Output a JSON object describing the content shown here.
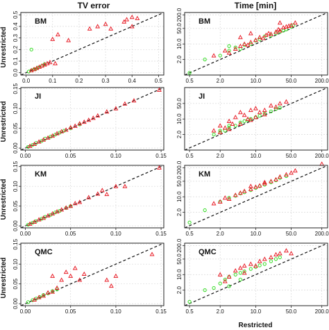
{
  "figure": {
    "col_titles": [
      "TV error",
      "Time [min]"
    ],
    "xlabel": "Restricted",
    "ylabel": "Unrestricted"
  },
  "colors": {
    "triangle": "#e8202a",
    "circle": "#33dd22",
    "diagonal": "#111111",
    "grid": "#d9d9d9"
  },
  "chart_data": [
    {
      "type": "scatter",
      "label": "BM",
      "column": "TV error",
      "scale": "linear",
      "xlim": [
        -0.02,
        0.52
      ],
      "ylim": [
        -0.02,
        0.52
      ],
      "xticks": [
        "0.0",
        "0.1",
        "0.2",
        "0.3",
        "0.4",
        "0.5"
      ],
      "xtick_vals": [
        0,
        0.1,
        0.2,
        0.3,
        0.4,
        0.5
      ],
      "yticks": [
        "0.0",
        "0.1",
        "0.2",
        "0.3",
        "0.4",
        "0.5"
      ],
      "ytick_vals": [
        0,
        0.1,
        0.2,
        0.3,
        0.4,
        0.5
      ],
      "grid": true,
      "diagonal": true,
      "triangles": [
        [
          0.1,
          0.29
        ],
        [
          0.12,
          0.33
        ],
        [
          0.16,
          0.28
        ],
        [
          0.24,
          0.38
        ],
        [
          0.27,
          0.4
        ],
        [
          0.3,
          0.42
        ],
        [
          0.32,
          0.38
        ],
        [
          0.37,
          0.44
        ],
        [
          0.38,
          0.46
        ],
        [
          0.4,
          0.4
        ],
        [
          0.4,
          0.48
        ],
        [
          0.42,
          0.47
        ],
        [
          0.02,
          0.02
        ],
        [
          0.03,
          0.03
        ],
        [
          0.04,
          0.04
        ],
        [
          0.05,
          0.05
        ],
        [
          0.06,
          0.06
        ],
        [
          0.07,
          0.07
        ],
        [
          0.08,
          0.08
        ],
        [
          0.09,
          0.09
        ],
        [
          0.11,
          0.08
        ]
      ],
      "circles": [
        [
          0.01,
          0.01
        ],
        [
          0.02,
          0.02
        ],
        [
          0.03,
          0.03
        ],
        [
          0.035,
          0.03
        ],
        [
          0.045,
          0.045
        ],
        [
          0.06,
          0.06
        ],
        [
          0.07,
          0.075
        ],
        [
          0.02,
          0.2
        ]
      ]
    },
    {
      "type": "scatter",
      "label": "BM",
      "column": "Time [min]",
      "scale": "log",
      "xlim": [
        0.4,
        260
      ],
      "ylim": [
        0.4,
        260
      ],
      "xticks": [
        "0.5",
        "2.0",
        "10.0",
        "50.0",
        "200.0"
      ],
      "xtick_vals": [
        0.5,
        2,
        10,
        50,
        200
      ],
      "yticks": [
        "2.0",
        "10.0",
        "50.0",
        "200.0"
      ],
      "ytick_vals": [
        2,
        10,
        50,
        200
      ],
      "grid": true,
      "diagonal": true,
      "triangles": [
        [
          1.5,
          3
        ],
        [
          2.5,
          5
        ],
        [
          3,
          4
        ],
        [
          4,
          6
        ],
        [
          5,
          8
        ],
        [
          6,
          10
        ],
        [
          7,
          9
        ],
        [
          8,
          12
        ],
        [
          10,
          15
        ],
        [
          12,
          20
        ],
        [
          14,
          18
        ],
        [
          16,
          25
        ],
        [
          18,
          30
        ],
        [
          20,
          28
        ],
        [
          25,
          35
        ],
        [
          28,
          45
        ],
        [
          30,
          40
        ],
        [
          35,
          55
        ],
        [
          40,
          60
        ],
        [
          45,
          65
        ],
        [
          50,
          70
        ],
        [
          60,
          90
        ],
        [
          8,
          30
        ],
        [
          5,
          20
        ],
        [
          30,
          90
        ]
      ],
      "circles": [
        [
          0.5,
          0.5
        ],
        [
          1,
          2
        ],
        [
          2,
          3
        ],
        [
          3,
          5
        ],
        [
          4,
          7
        ],
        [
          5,
          6
        ],
        [
          6,
          9
        ],
        [
          8,
          10
        ],
        [
          10,
          14
        ],
        [
          12,
          16
        ],
        [
          15,
          22
        ],
        [
          20,
          24
        ],
        [
          25,
          30
        ],
        [
          30,
          35
        ],
        [
          35,
          40
        ],
        [
          40,
          45
        ],
        [
          50,
          60
        ],
        [
          55,
          70
        ],
        [
          3,
          8
        ]
      ]
    },
    {
      "type": "scatter",
      "label": "JI",
      "column": "TV error",
      "scale": "linear",
      "xlim": [
        -0.005,
        0.153
      ],
      "ylim": [
        -0.005,
        0.153
      ],
      "xticks": [
        "0.00",
        "0.05",
        "0.10",
        "0.15"
      ],
      "xtick_vals": [
        0,
        0.05,
        0.1,
        0.15
      ],
      "yticks": [
        "0.00",
        "0.05",
        "0.10",
        "0.15"
      ],
      "ytick_vals": [
        0,
        0.05,
        0.1,
        0.15
      ],
      "grid": true,
      "diagonal": true,
      "triangles": [
        [
          0.005,
          0.005
        ],
        [
          0.01,
          0.01
        ],
        [
          0.015,
          0.016
        ],
        [
          0.02,
          0.021
        ],
        [
          0.025,
          0.026
        ],
        [
          0.03,
          0.031
        ],
        [
          0.035,
          0.037
        ],
        [
          0.04,
          0.042
        ],
        [
          0.045,
          0.046
        ],
        [
          0.05,
          0.052
        ],
        [
          0.055,
          0.056
        ],
        [
          0.06,
          0.062
        ],
        [
          0.065,
          0.066
        ],
        [
          0.07,
          0.071
        ],
        [
          0.075,
          0.076
        ],
        [
          0.08,
          0.082
        ],
        [
          0.09,
          0.092
        ],
        [
          0.1,
          0.1
        ],
        [
          0.11,
          0.112
        ],
        [
          0.12,
          0.12
        ],
        [
          0.148,
          0.147
        ]
      ],
      "circles": [
        [
          0.003,
          0.003
        ],
        [
          0.008,
          0.008
        ],
        [
          0.012,
          0.013
        ],
        [
          0.018,
          0.018
        ],
        [
          0.022,
          0.024
        ],
        [
          0.028,
          0.029
        ],
        [
          0.033,
          0.034
        ],
        [
          0.038,
          0.039
        ],
        [
          0.043,
          0.044
        ],
        [
          0.05,
          0.05
        ],
        [
          0.06,
          0.06
        ]
      ]
    },
    {
      "type": "scatter",
      "label": "JI",
      "column": "Time [min]",
      "scale": "log",
      "xlim": [
        0.4,
        260
      ],
      "ylim": [
        0.4,
        260
      ],
      "xticks": [
        "0.5",
        "2.0",
        "10.0",
        "50.0",
        "200.0"
      ],
      "xtick_vals": [
        0.5,
        2,
        10,
        50,
        200
      ],
      "yticks": [
        "2.0",
        "10.0",
        "50.0"
      ],
      "ytick_vals": [
        2,
        10,
        50
      ],
      "grid": true,
      "diagonal": true,
      "triangles": [
        [
          1.5,
          3
        ],
        [
          2,
          5
        ],
        [
          2.5,
          4
        ],
        [
          3,
          8
        ],
        [
          3.5,
          6
        ],
        [
          4,
          12
        ],
        [
          5,
          20
        ],
        [
          6,
          15
        ],
        [
          7,
          10
        ],
        [
          8,
          25
        ],
        [
          10,
          30
        ],
        [
          12,
          20
        ],
        [
          15,
          25
        ],
        [
          20,
          40
        ],
        [
          25,
          35
        ],
        [
          30,
          50
        ],
        [
          40,
          60
        ],
        [
          2,
          2.5
        ],
        [
          3,
          3.5
        ],
        [
          5,
          6
        ],
        [
          8,
          9
        ],
        [
          10,
          12
        ],
        [
          15,
          16
        ]
      ],
      "circles": [
        [
          1.5,
          2
        ],
        [
          2,
          2.5
        ],
        [
          2.5,
          3
        ],
        [
          3,
          4
        ],
        [
          4,
          5
        ],
        [
          5,
          7
        ],
        [
          6,
          8
        ],
        [
          8,
          10
        ],
        [
          10,
          12
        ],
        [
          12,
          14
        ],
        [
          15,
          18
        ],
        [
          20,
          22
        ],
        [
          25,
          28
        ],
        [
          30,
          32
        ],
        [
          2,
          3
        ],
        [
          3,
          5
        ],
        [
          7,
          9
        ]
      ]
    },
    {
      "type": "scatter",
      "label": "KM",
      "column": "TV error",
      "scale": "linear",
      "xlim": [
        -0.005,
        0.153
      ],
      "ylim": [
        -0.005,
        0.153
      ],
      "xticks": [
        "0.00",
        "0.05",
        "0.10",
        "0.15"
      ],
      "xtick_vals": [
        0,
        0.05,
        0.1,
        0.15
      ],
      "yticks": [
        "0.00",
        "0.05",
        "0.10",
        "0.15"
      ],
      "ytick_vals": [
        0,
        0.05,
        0.1,
        0.15
      ],
      "grid": true,
      "diagonal": true,
      "triangles": [
        [
          0.005,
          0.005
        ],
        [
          0.01,
          0.01
        ],
        [
          0.015,
          0.016
        ],
        [
          0.02,
          0.02
        ],
        [
          0.025,
          0.026
        ],
        [
          0.03,
          0.031
        ],
        [
          0.035,
          0.036
        ],
        [
          0.04,
          0.041
        ],
        [
          0.045,
          0.046
        ],
        [
          0.05,
          0.05
        ],
        [
          0.055,
          0.057
        ],
        [
          0.06,
          0.06
        ],
        [
          0.07,
          0.072
        ],
        [
          0.08,
          0.081
        ],
        [
          0.085,
          0.09
        ],
        [
          0.09,
          0.08
        ],
        [
          0.1,
          0.1
        ],
        [
          0.11,
          0.1
        ],
        [
          0.148,
          0.147
        ]
      ],
      "circles": [
        [
          0.003,
          0.003
        ],
        [
          0.008,
          0.008
        ],
        [
          0.012,
          0.012
        ],
        [
          0.018,
          0.018
        ],
        [
          0.022,
          0.023
        ],
        [
          0.028,
          0.028
        ],
        [
          0.033,
          0.034
        ],
        [
          0.038,
          0.038
        ],
        [
          0.045,
          0.045
        ],
        [
          0.05,
          0.05
        ]
      ]
    },
    {
      "type": "scatter",
      "label": "KM",
      "column": "Time [min]",
      "scale": "log",
      "xlim": [
        0.4,
        260
      ],
      "ylim": [
        0.4,
        260
      ],
      "xticks": [
        "0.5",
        "2.0",
        "10.0",
        "50.0",
        "200.0"
      ],
      "xtick_vals": [
        0.5,
        2,
        10,
        50,
        200
      ],
      "yticks": [
        "2.0",
        "10.0",
        "50.0",
        "200.0"
      ],
      "ytick_vals": [
        2,
        10,
        50,
        200
      ],
      "grid": true,
      "diagonal": true,
      "triangles": [
        [
          1.5,
          5
        ],
        [
          2,
          6
        ],
        [
          3,
          8
        ],
        [
          4,
          12
        ],
        [
          5,
          15
        ],
        [
          6,
          18
        ],
        [
          8,
          22
        ],
        [
          10,
          28
        ],
        [
          12,
          32
        ],
        [
          15,
          40
        ],
        [
          20,
          50
        ],
        [
          25,
          60
        ],
        [
          30,
          80
        ],
        [
          40,
          100
        ],
        [
          50,
          120
        ],
        [
          60,
          150
        ],
        [
          200,
          300
        ],
        [
          2.5,
          9
        ],
        [
          8,
          30
        ],
        [
          15,
          45
        ]
      ],
      "circles": [
        [
          0.5,
          0.7
        ],
        [
          1,
          2.5
        ],
        [
          2,
          6
        ],
        [
          3,
          9
        ],
        [
          4,
          11
        ],
        [
          5,
          14
        ],
        [
          6,
          16
        ],
        [
          8,
          20
        ],
        [
          10,
          25
        ],
        [
          12,
          30
        ],
        [
          15,
          35
        ],
        [
          20,
          45
        ],
        [
          25,
          55
        ],
        [
          30,
          70
        ],
        [
          40,
          85
        ]
      ]
    },
    {
      "type": "scatter",
      "label": "QMC",
      "column": "TV error",
      "scale": "linear",
      "xlim": [
        -0.005,
        0.153
      ],
      "ylim": [
        -0.005,
        0.153
      ],
      "xticks": [
        "0.00",
        "0.05",
        "0.10",
        "0.15"
      ],
      "xtick_vals": [
        0,
        0.05,
        0.1,
        0.15
      ],
      "yticks": [
        "0.00",
        "0.05",
        "0.10",
        "0.15"
      ],
      "ytick_vals": [
        0,
        0.05,
        0.1,
        0.15
      ],
      "grid": true,
      "diagonal": true,
      "triangles": [
        [
          0.03,
          0.07
        ],
        [
          0.04,
          0.06
        ],
        [
          0.045,
          0.08
        ],
        [
          0.05,
          0.07
        ],
        [
          0.055,
          0.09
        ],
        [
          0.06,
          0.06
        ],
        [
          0.065,
          0.075
        ],
        [
          0.09,
          0.06
        ],
        [
          0.095,
          0.045
        ],
        [
          0.1,
          0.07
        ],
        [
          0.14,
          0.125
        ],
        [
          0.01,
          0.01
        ],
        [
          0.015,
          0.016
        ],
        [
          0.02,
          0.02
        ],
        [
          0.025,
          0.028
        ],
        [
          0.03,
          0.03
        ],
        [
          0.035,
          0.04
        ]
      ],
      "circles": [
        [
          0.003,
          0.004
        ],
        [
          0.008,
          0.009
        ],
        [
          0.012,
          0.013
        ],
        [
          0.016,
          0.017
        ],
        [
          0.02,
          0.022
        ],
        [
          0.025,
          0.026
        ],
        [
          0.03,
          0.032
        ],
        [
          0.035,
          0.036
        ]
      ]
    },
    {
      "type": "scatter",
      "label": "QMC",
      "column": "Time [min]",
      "scale": "log",
      "xlim": [
        0.4,
        260
      ],
      "ylim": [
        0.4,
        260
      ],
      "xticks": [
        "0.5",
        "2.0",
        "10.0",
        "50.0",
        "200.0"
      ],
      "xtick_vals": [
        0.5,
        2,
        10,
        50,
        200
      ],
      "yticks": [
        "2.0",
        "10.0",
        "50.0",
        "200.0"
      ],
      "ytick_vals": [
        2,
        10,
        50,
        200
      ],
      "grid": true,
      "diagonal": true,
      "triangles": [
        [
          2,
          10
        ],
        [
          3,
          8
        ],
        [
          4,
          15
        ],
        [
          5,
          20
        ],
        [
          6,
          25
        ],
        [
          8,
          30
        ],
        [
          10,
          25
        ],
        [
          12,
          40
        ],
        [
          15,
          50
        ],
        [
          20,
          60
        ],
        [
          25,
          80
        ],
        [
          30,
          90
        ],
        [
          40,
          120
        ],
        [
          50,
          90
        ],
        [
          2.5,
          5
        ],
        [
          6,
          12
        ]
      ],
      "circles": [
        [
          0.5,
          0.6
        ],
        [
          1,
          2
        ],
        [
          1.5,
          2.5
        ],
        [
          2,
          4
        ],
        [
          2.5,
          6
        ],
        [
          3,
          8
        ],
        [
          4,
          10
        ],
        [
          5,
          12
        ],
        [
          6,
          14
        ],
        [
          8,
          18
        ],
        [
          10,
          22
        ],
        [
          12,
          26
        ],
        [
          15,
          30
        ],
        [
          20,
          40
        ],
        [
          25,
          50
        ],
        [
          30,
          60
        ],
        [
          3,
          3
        ],
        [
          5,
          6
        ]
      ]
    }
  ]
}
